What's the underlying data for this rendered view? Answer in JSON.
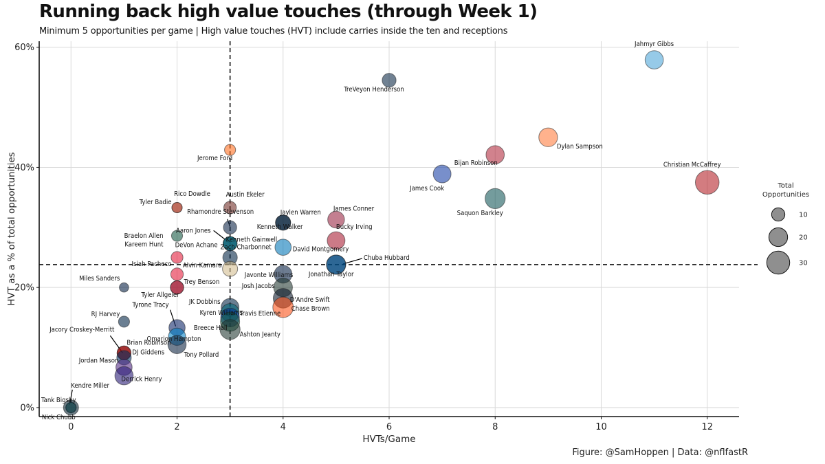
{
  "title": "Running back high value touches (through Week 1)",
  "subtitle": "Minimum 5 opportunities per game | High value touches (HVT) include carries inside the ten and receptions",
  "caption": "Figure: @SamHoppen | Data: @nflfastR",
  "chart_data": {
    "type": "scatter",
    "xlabel": "HVTs/Game",
    "ylabel": "HVT as a % of total opportunities",
    "xlim": [
      -0.6,
      12.6
    ],
    "ylim": [
      -1.5,
      61
    ],
    "xticks": [
      0,
      2,
      4,
      6,
      8,
      10,
      12
    ],
    "yticks": [
      0,
      20,
      40,
      60
    ],
    "ytick_labels": [
      "0%",
      "20%",
      "40%",
      "60%"
    ],
    "grid": true,
    "reference_lines": {
      "x": 3,
      "y": 23.8
    },
    "legend": {
      "title_line1": "Total",
      "title_line2": "Opportunities",
      "sizes": [
        10,
        20,
        30
      ],
      "placement": "right"
    },
    "points": [
      {
        "name": "Jahmyr Gibbs",
        "x": 11,
        "y": 57.9,
        "opp": 19,
        "color": "#4aa3d8"
      },
      {
        "name": "TreVeyon Henderson",
        "x": 6,
        "y": 54.5,
        "opp": 11,
        "color": "#0b2745"
      },
      {
        "name": "Dylan Sampson",
        "x": 9,
        "y": 45,
        "opp": 20,
        "color": "#ff7b3a"
      },
      {
        "name": "Jerome Ford",
        "x": 3,
        "y": 42.9,
        "opp": 7,
        "color": "#ff6a1a"
      },
      {
        "name": "Bijan Robinson",
        "x": 8,
        "y": 42.1,
        "opp": 19,
        "color": "#b0283a"
      },
      {
        "name": "James Cook",
        "x": 7,
        "y": 38.9,
        "opp": 18,
        "color": "#173ea6"
      },
      {
        "name": "Christian McCaffrey",
        "x": 12,
        "y": 37.5,
        "opp": 32,
        "color": "#b41e24"
      },
      {
        "name": "Saquon Barkley",
        "x": 8,
        "y": 34.8,
        "opp": 23,
        "color": "#0f5457"
      },
      {
        "name": "Rico Dowdle",
        "x": 2,
        "y": 33.3,
        "opp": 6,
        "color": "#034694"
      },
      {
        "name": "Austin Ekeler",
        "x": 3,
        "y": 33.3,
        "opp": 9,
        "color": "#6f2a22"
      },
      {
        "name": "Jaylen Warren",
        "x": 4,
        "y": 30.8,
        "opp": 13,
        "color": "#101820"
      },
      {
        "name": "James Conner",
        "x": 5,
        "y": 31.3,
        "opp": 16,
        "color": "#97233f"
      },
      {
        "name": "Tyler Badie",
        "x": 2,
        "y": 33.3,
        "opp": 6,
        "color": "#fb4f14"
      },
      {
        "name": "Rhamondre Stevenson",
        "x": 3,
        "y": 30,
        "opp": 10,
        "color": "#0b2245"
      },
      {
        "name": "Braelon Allen",
        "x": 2,
        "y": 28.6,
        "opp": 7,
        "color": "#125740"
      },
      {
        "name": "Kenneth Walker",
        "x": 4,
        "y": 30.8,
        "opp": 13,
        "color": "#002244"
      },
      {
        "name": "Aaron Jones",
        "x": 3,
        "y": 27.3,
        "opp": 11,
        "color": "#4f2683"
      },
      {
        "name": "Kenneth Gainwell",
        "x": 3,
        "y": 27.3,
        "opp": 11,
        "color": "#101820"
      },
      {
        "name": "Bucky Irving",
        "x": 5,
        "y": 27.8,
        "opp": 18,
        "color": "#a71930"
      },
      {
        "name": "DeVon Achane",
        "x": 3,
        "y": 27.3,
        "opp": 11,
        "color": "#008e97"
      },
      {
        "name": "David Montgomery",
        "x": 4,
        "y": 26.7,
        "opp": 15,
        "color": "#0076b6"
      },
      {
        "name": "Kareem Hunt",
        "x": 2,
        "y": 25,
        "opp": 8,
        "color": "#e31837"
      },
      {
        "name": "Zach Charbonnet",
        "x": 3,
        "y": 25,
        "opp": 12,
        "color": "#002244"
      },
      {
        "name": "Chuba Hubbard",
        "x": 5,
        "y": 23.8,
        "opp": 21,
        "color": "#0085ca"
      },
      {
        "name": "Isiah Pacheco",
        "x": 2,
        "y": 22.2,
        "opp": 9,
        "color": "#e31837"
      },
      {
        "name": "Alvin Kamara",
        "x": 3,
        "y": 23.1,
        "opp": 13,
        "color": "#d3bc8d"
      },
      {
        "name": "Javonte Williams",
        "x": 4,
        "y": 22.2,
        "opp": 18,
        "color": "#041e42"
      },
      {
        "name": "Jonathan Taylor",
        "x": 5,
        "y": 23.8,
        "opp": 21,
        "color": "#002c5f"
      },
      {
        "name": "Miles Sanders",
        "x": 1,
        "y": 20,
        "opp": 5,
        "color": "#041e42"
      },
      {
        "name": "Trey Benson",
        "x": 2,
        "y": 20,
        "opp": 10,
        "color": "#97233f"
      },
      {
        "name": "Josh Jacobs",
        "x": 4,
        "y": 20,
        "opp": 20,
        "color": "#203731"
      },
      {
        "name": "Tyler Allgeier",
        "x": 2,
        "y": 20,
        "opp": 10,
        "color": "#a71930"
      },
      {
        "name": "D'Andre Swift",
        "x": 4,
        "y": 18.2,
        "opp": 22,
        "color": "#0b162a"
      },
      {
        "name": "JK Dobbins",
        "x": 3,
        "y": 16.7,
        "opp": 18,
        "color": "#002244"
      },
      {
        "name": "Chase Brown",
        "x": 4,
        "y": 16.7,
        "opp": 24,
        "color": "#fb4f14"
      },
      {
        "name": "Travis Etienne",
        "x": 3,
        "y": 15.8,
        "opp": 19,
        "color": "#006778"
      },
      {
        "name": "Kyren Williams",
        "x": 3,
        "y": 15,
        "opp": 20,
        "color": "#003594"
      },
      {
        "name": "RJ Harvey",
        "x": 1,
        "y": 14.3,
        "opp": 7,
        "color": "#002244"
      },
      {
        "name": "Tyrone Tracy",
        "x": 2,
        "y": 13.3,
        "opp": 15,
        "color": "#0b2265"
      },
      {
        "name": "Breece Hall",
        "x": 3,
        "y": 14.3,
        "opp": 21,
        "color": "#125740"
      },
      {
        "name": "Ashton Jeanty",
        "x": 3,
        "y": 13,
        "opp": 23,
        "color": "#203731"
      },
      {
        "name": "Omarion Hampton",
        "x": 2,
        "y": 11.8,
        "opp": 17,
        "color": "#0080c6"
      },
      {
        "name": "Jacory Croskey-Merritt",
        "x": 1,
        "y": 9.1,
        "opp": 11,
        "color": "#5a1414"
      },
      {
        "name": "Tony Pollard",
        "x": 2,
        "y": 10.5,
        "opp": 19,
        "color": "#0c2340"
      },
      {
        "name": "Brian Robinson",
        "x": 1,
        "y": 9.1,
        "opp": 11,
        "color": "#aa0000"
      },
      {
        "name": "DJ Giddens",
        "x": 1,
        "y": 8.3,
        "opp": 12,
        "color": "#002c5f"
      },
      {
        "name": "Jordan Mason",
        "x": 1,
        "y": 6.7,
        "opp": 15,
        "color": "#4f2683"
      },
      {
        "name": "Derrick Henry",
        "x": 1,
        "y": 5.3,
        "opp": 19,
        "color": "#241773"
      },
      {
        "name": "Kendre Miller",
        "x": 0,
        "y": 0,
        "opp": 6,
        "color": "#d3bc8d"
      },
      {
        "name": "Tank Bigsby",
        "x": 0,
        "y": 0,
        "opp": 6,
        "color": "#006778"
      },
      {
        "name": "Nick Chubb",
        "x": 0,
        "y": 0,
        "opp": 13,
        "color": "#03202f"
      }
    ]
  }
}
